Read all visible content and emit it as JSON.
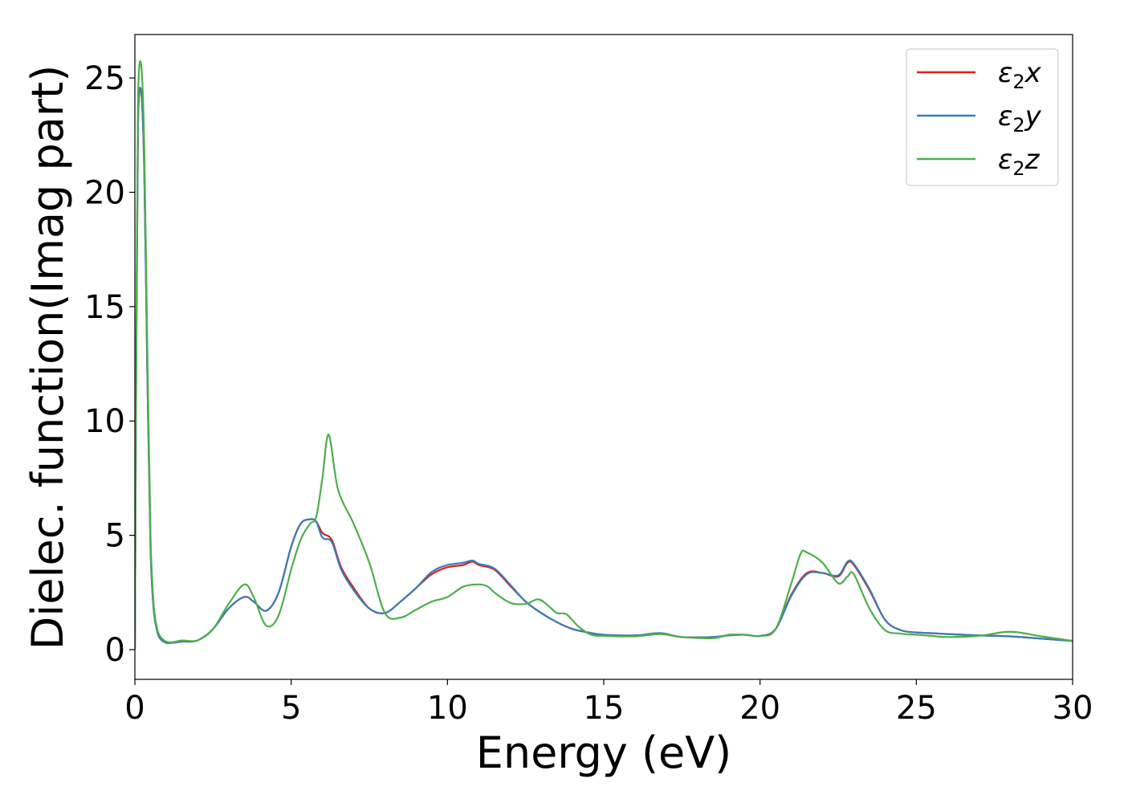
{
  "chart_data": {
    "type": "line",
    "title": "",
    "xlabel": "Energy (eV)",
    "ylabel": "Dielec. function(Imag part)",
    "xlim": [
      0,
      30
    ],
    "ylim": [
      -1.3,
      26.9
    ],
    "xticks": [
      0,
      5,
      10,
      15,
      20,
      25,
      30
    ],
    "xtick_labels": [
      "0",
      "5",
      "10",
      "15",
      "20",
      "25",
      "30"
    ],
    "yticks": [
      0,
      5,
      10,
      15,
      20,
      25
    ],
    "ytick_labels": [
      "0",
      "5",
      "10",
      "15",
      "20",
      "25"
    ],
    "grid": false,
    "legend_position": "top-right",
    "series": [
      {
        "name": "ε₂x",
        "legend_base": "ε",
        "legend_sub": "2",
        "legend_suffix": "x",
        "color": "#e41a1c",
        "x": [
          0,
          0.05,
          0.1,
          0.2,
          0.3,
          0.4,
          0.5,
          0.6,
          0.7,
          0.8,
          1.0,
          1.2,
          1.5,
          2.0,
          2.5,
          3.0,
          3.5,
          3.8,
          4.2,
          4.6,
          5.0,
          5.3,
          5.6,
          5.8,
          6.0,
          6.3,
          6.6,
          7.0,
          7.5,
          8.0,
          8.5,
          9.0,
          9.5,
          10.0,
          10.5,
          10.8,
          11.0,
          11.5,
          12.0,
          12.5,
          13.0,
          13.5,
          14.0,
          14.5,
          15.0,
          16.0,
          16.8,
          17.5,
          18.5,
          19.0,
          19.5,
          20.0,
          20.5,
          21.0,
          21.5,
          22.0,
          22.5,
          22.8,
          23.0,
          23.5,
          24.0,
          24.5,
          25.0,
          25.5,
          26.0,
          27.0,
          28.0,
          29.0,
          30.0
        ],
        "values": [
          0,
          14.0,
          23.0,
          24.4,
          21.0,
          12.0,
          4.5,
          1.8,
          0.9,
          0.5,
          0.3,
          0.3,
          0.35,
          0.4,
          0.9,
          1.8,
          2.3,
          2.1,
          1.7,
          2.5,
          4.5,
          5.5,
          5.7,
          5.6,
          5.1,
          4.8,
          3.6,
          2.7,
          1.8,
          1.6,
          2.1,
          2.7,
          3.3,
          3.6,
          3.7,
          3.85,
          3.7,
          3.5,
          2.8,
          2.1,
          1.6,
          1.2,
          0.9,
          0.75,
          0.65,
          0.62,
          0.72,
          0.55,
          0.55,
          0.62,
          0.65,
          0.6,
          0.9,
          2.4,
          3.35,
          3.35,
          3.2,
          3.8,
          3.7,
          2.6,
          1.3,
          0.85,
          0.75,
          0.72,
          0.68,
          0.62,
          0.58,
          0.48,
          0.38
        ]
      },
      {
        "name": "ε₂y",
        "legend_base": "ε",
        "legend_sub": "2",
        "legend_suffix": "y",
        "color": "#377eb8",
        "x": [
          0,
          0.05,
          0.1,
          0.2,
          0.3,
          0.4,
          0.5,
          0.6,
          0.7,
          0.8,
          1.0,
          1.2,
          1.5,
          2.0,
          2.5,
          3.0,
          3.5,
          3.8,
          4.2,
          4.6,
          5.0,
          5.3,
          5.6,
          5.8,
          6.0,
          6.3,
          6.6,
          7.0,
          7.5,
          8.0,
          8.5,
          9.0,
          9.5,
          10.0,
          10.5,
          10.8,
          11.0,
          11.5,
          12.0,
          12.5,
          13.0,
          13.5,
          14.0,
          14.5,
          15.0,
          16.0,
          16.8,
          17.5,
          18.5,
          19.0,
          19.5,
          20.0,
          20.5,
          21.0,
          21.5,
          22.0,
          22.5,
          22.8,
          23.0,
          23.5,
          24.0,
          24.5,
          25.0,
          25.5,
          26.0,
          27.0,
          28.0,
          29.0,
          30.0
        ],
        "values": [
          0,
          14.0,
          23.0,
          24.4,
          21.0,
          12.0,
          4.5,
          1.8,
          0.9,
          0.5,
          0.3,
          0.3,
          0.35,
          0.4,
          0.9,
          1.8,
          2.3,
          2.1,
          1.7,
          2.5,
          4.5,
          5.5,
          5.7,
          5.6,
          4.9,
          4.7,
          3.5,
          2.6,
          1.8,
          1.6,
          2.1,
          2.7,
          3.4,
          3.7,
          3.8,
          3.9,
          3.75,
          3.55,
          2.85,
          2.1,
          1.6,
          1.2,
          0.9,
          0.75,
          0.65,
          0.62,
          0.72,
          0.55,
          0.55,
          0.62,
          0.65,
          0.6,
          0.9,
          2.35,
          3.3,
          3.35,
          3.25,
          3.85,
          3.75,
          2.65,
          1.3,
          0.85,
          0.75,
          0.72,
          0.68,
          0.62,
          0.58,
          0.48,
          0.38
        ]
      },
      {
        "name": "ε₂z",
        "legend_base": "ε",
        "legend_sub": "2",
        "legend_suffix": "z",
        "color": "#4daf4a",
        "x": [
          0,
          0.05,
          0.1,
          0.2,
          0.3,
          0.4,
          0.5,
          0.6,
          0.7,
          0.8,
          1.0,
          1.2,
          1.5,
          2.0,
          2.5,
          3.0,
          3.5,
          3.8,
          4.2,
          4.6,
          5.0,
          5.3,
          5.6,
          5.8,
          6.0,
          6.2,
          6.5,
          7.0,
          7.5,
          8.0,
          8.5,
          9.0,
          9.5,
          10.0,
          10.5,
          11.0,
          11.3,
          11.5,
          12.0,
          12.5,
          12.9,
          13.2,
          13.5,
          13.8,
          14.2,
          14.6,
          15.0,
          16.0,
          16.8,
          17.5,
          18.5,
          19.0,
          19.5,
          20.0,
          20.5,
          21.0,
          21.3,
          21.5,
          22.0,
          22.5,
          22.8,
          23.0,
          23.5,
          24.0,
          24.5,
          25.0,
          25.5,
          26.0,
          27.0,
          28.0,
          29.0,
          30.0
        ],
        "values": [
          0,
          15.0,
          24.0,
          25.6,
          22.0,
          13.0,
          5.0,
          2.0,
          1.0,
          0.6,
          0.35,
          0.32,
          0.4,
          0.4,
          0.9,
          2.0,
          2.85,
          2.3,
          1.05,
          1.5,
          3.5,
          4.8,
          5.5,
          5.8,
          7.5,
          9.4,
          7.0,
          5.5,
          3.8,
          1.6,
          1.4,
          1.75,
          2.1,
          2.3,
          2.75,
          2.85,
          2.75,
          2.5,
          2.05,
          2.0,
          2.2,
          1.95,
          1.6,
          1.55,
          1.0,
          0.65,
          0.6,
          0.58,
          0.68,
          0.55,
          0.5,
          0.65,
          0.65,
          0.6,
          0.9,
          2.9,
          4.2,
          4.25,
          3.8,
          2.9,
          3.2,
          3.3,
          1.8,
          0.85,
          0.7,
          0.65,
          0.6,
          0.55,
          0.6,
          0.78,
          0.58,
          0.38
        ]
      }
    ]
  }
}
